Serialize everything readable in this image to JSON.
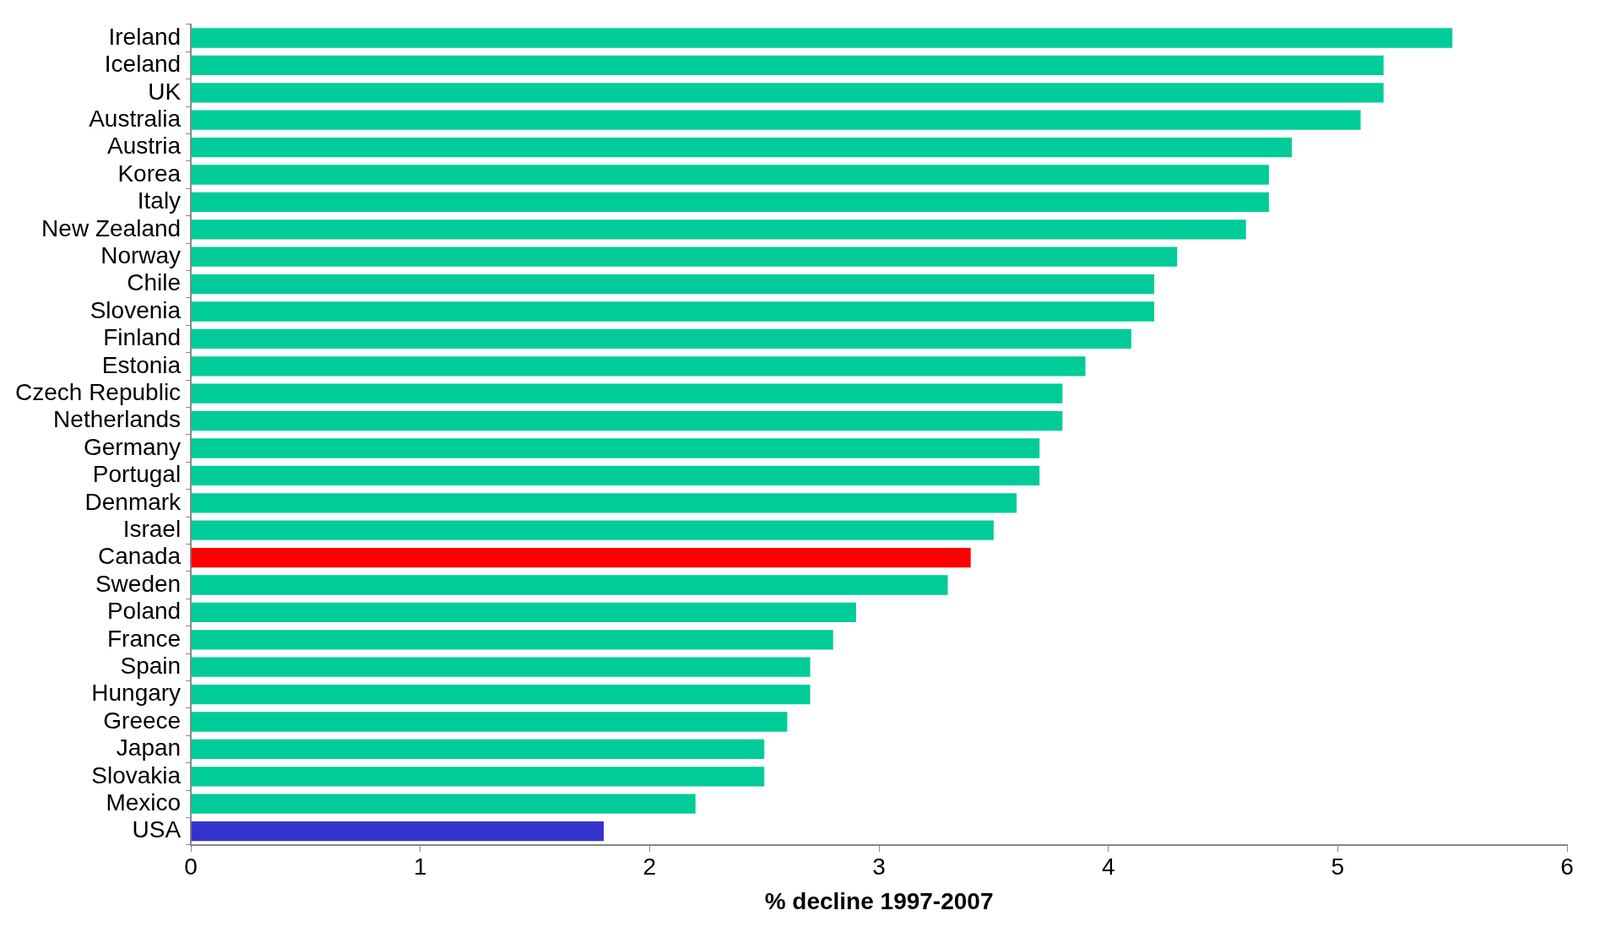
{
  "chart_data": {
    "type": "bar",
    "orientation": "horizontal",
    "x_label": "% decline 1997-2007",
    "categories": [
      "Ireland",
      "Iceland",
      "UK",
      "Australia",
      "Austria",
      "Korea",
      "Italy",
      "New Zealand",
      "Norway",
      "Chile",
      "Slovenia",
      "Finland",
      "Estonia",
      "Czech Republic",
      "Netherlands",
      "Germany",
      "Portugal",
      "Denmark",
      "Israel",
      "Canada",
      "Sweden",
      "Poland",
      "France",
      "Spain",
      "Hungary",
      "Greece",
      "Japan",
      "Slovakia",
      "Mexico",
      "USA"
    ],
    "values": [
      5.5,
      5.2,
      5.2,
      5.1,
      4.8,
      4.7,
      4.7,
      4.6,
      4.3,
      4.2,
      4.2,
      4.1,
      3.9,
      3.8,
      3.8,
      3.7,
      3.7,
      3.6,
      3.5,
      3.4,
      3.3,
      2.9,
      2.8,
      2.7,
      2.7,
      2.6,
      2.5,
      2.5,
      2.2,
      1.8
    ],
    "colors": [
      "#00cc99",
      "#00cc99",
      "#00cc99",
      "#00cc99",
      "#00cc99",
      "#00cc99",
      "#00cc99",
      "#00cc99",
      "#00cc99",
      "#00cc99",
      "#00cc99",
      "#00cc99",
      "#00cc99",
      "#00cc99",
      "#00cc99",
      "#00cc99",
      "#00cc99",
      "#00cc99",
      "#00cc99",
      "#ff0000",
      "#00cc99",
      "#00cc99",
      "#00cc99",
      "#00cc99",
      "#00cc99",
      "#00cc99",
      "#00cc99",
      "#00cc99",
      "#00cc99",
      "#3333cc"
    ],
    "xlim": [
      0,
      6
    ],
    "xticks": [
      0,
      1,
      2,
      3,
      4,
      5,
      6
    ],
    "grid": false
  }
}
